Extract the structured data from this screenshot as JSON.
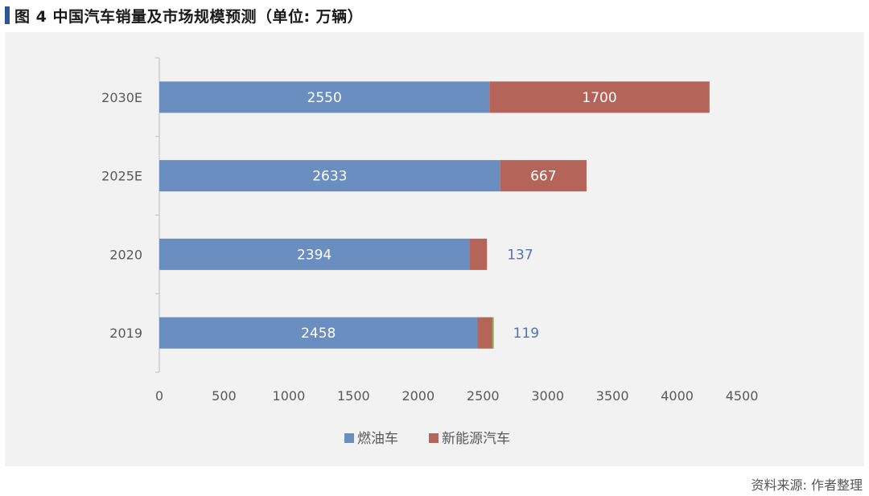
{
  "title": "图 4  中国汽车销量及市场规模预测（单位: 万辆）",
  "source": "资料来源: 作者整理",
  "colors": {
    "title_marker": "#2e5597",
    "fuel": "#6a8ebf",
    "nev": "#b5645a",
    "outside_label": "#4f73b3",
    "inside_label": "#ffffff",
    "panel_bg": "#f2f2f2"
  },
  "chart_data": {
    "type": "bar",
    "orientation": "horizontal",
    "stacked": true,
    "categories": [
      "2030E",
      "2025E",
      "2020",
      "2019"
    ],
    "series": [
      {
        "name": "燃油车",
        "values": [
          2550,
          2633,
          2394,
          2458
        ]
      },
      {
        "name": "新能源汽车",
        "values": [
          1700,
          667,
          137,
          119
        ]
      }
    ],
    "xlim": [
      0,
      4500
    ],
    "xticks": [
      0,
      500,
      1000,
      1500,
      2000,
      2500,
      3000,
      3500,
      4000,
      4500
    ],
    "grid": false,
    "legend_position": "bottom"
  }
}
